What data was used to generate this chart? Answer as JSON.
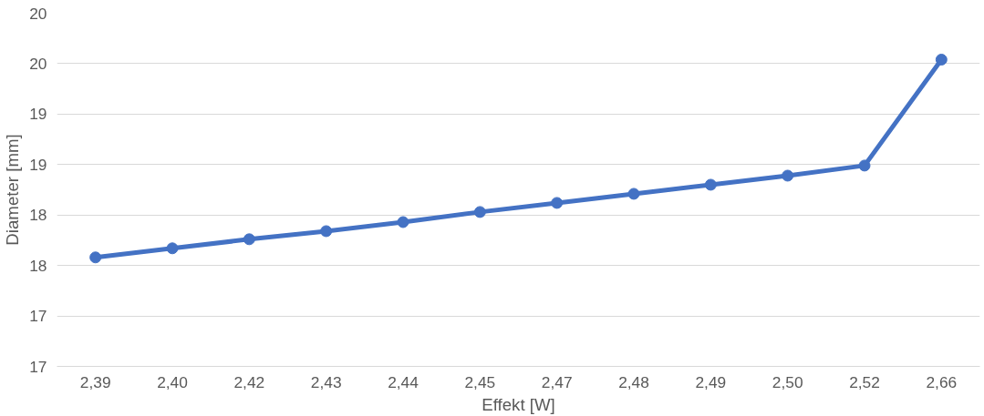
{
  "chart_data": {
    "type": "line",
    "xlabel": "Effekt [W]",
    "ylabel": "Diameter [mm]",
    "categories": [
      "2,39",
      "2,40",
      "2,42",
      "2,43",
      "2,44",
      "2,45",
      "2,47",
      "2,48",
      "2,49",
      "2,50",
      "2,52",
      "2,66"
    ],
    "series": [
      {
        "color": "#4472c4",
        "values": [
          17.58,
          17.67,
          17.76,
          17.84,
          17.93,
          18.03,
          18.12,
          18.21,
          18.3,
          18.39,
          18.49,
          19.54
        ]
      }
    ],
    "ylim": [
      16.5,
      20
    ],
    "yticks": [
      {
        "value": 16.5,
        "label": "17"
      },
      {
        "value": 17,
        "label": "17"
      },
      {
        "value": 17.5,
        "label": "18"
      },
      {
        "value": 18,
        "label": "18"
      },
      {
        "value": 18.5,
        "label": "19"
      },
      {
        "value": 19,
        "label": "19"
      },
      {
        "value": 19.5,
        "label": "20"
      },
      {
        "value": 20,
        "label": "20"
      }
    ],
    "grid": "y",
    "marker": "circle",
    "line_style": "solid"
  }
}
